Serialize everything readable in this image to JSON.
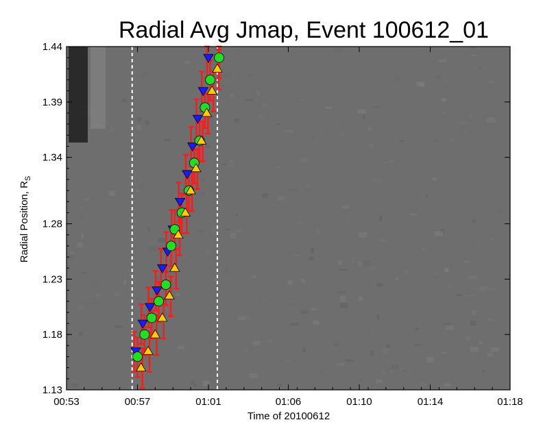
{
  "chart_data": {
    "type": "scatter",
    "title": "Radial Avg Jmap, Event 100612_01",
    "xlabel": "Time of 20100612",
    "ylabel": "Radial Position, R",
    "ylabel_sub": "S",
    "x_ticks": [
      "00:53",
      "00:57",
      "01:01",
      "01:06",
      "01:10",
      "01:14",
      "01:18"
    ],
    "x_tick_minutes": [
      0,
      4,
      8,
      12.5,
      16.5,
      20.5,
      25
    ],
    "y_ticks": [
      "1.13",
      "1.18",
      "1.23",
      "1.28",
      "1.34",
      "1.39",
      "1.44"
    ],
    "y_tick_values": [
      1.13,
      1.18,
      1.23,
      1.28,
      1.34,
      1.39,
      1.44
    ],
    "xlim_minutes": [
      0,
      25
    ],
    "ylim": [
      1.13,
      1.44
    ],
    "dashed_lines_minutes": [
      3.7,
      8.5
    ],
    "background": "grayscale radial intensity map",
    "colors": {
      "background_gray": "#6e6e6e",
      "errorbar": "#ff1a1a",
      "series_blue": "#1a1aff",
      "series_green": "#22dd22",
      "series_yellow": "#ffcc00",
      "dashed": "#ffffff"
    },
    "series": [
      {
        "marker": "triangle-down",
        "color": "#1a1aff",
        "x": [
          3.9,
          4.3,
          4.7,
          5.1,
          5.4,
          5.7,
          6.0,
          6.4,
          6.8,
          7.1,
          7.4,
          7.7,
          8.0
        ],
        "y": [
          1.165,
          1.19,
          1.205,
          1.22,
          1.24,
          1.255,
          1.275,
          1.3,
          1.325,
          1.35,
          1.375,
          1.4,
          1.43
        ]
      },
      {
        "marker": "circle",
        "color": "#22dd22",
        "x": [
          4.0,
          4.4,
          4.8,
          5.2,
          5.6,
          5.9,
          6.1,
          6.5,
          6.9,
          7.2,
          7.5,
          7.8,
          8.1,
          8.6
        ],
        "y": [
          1.16,
          1.18,
          1.195,
          1.21,
          1.225,
          1.26,
          1.275,
          1.29,
          1.31,
          1.335,
          1.355,
          1.385,
          1.41,
          1.43
        ]
      },
      {
        "marker": "triangle-up",
        "color": "#ffcc00",
        "x": [
          4.2,
          4.6,
          5.0,
          5.4,
          5.8,
          6.1,
          6.3,
          6.7,
          7.0,
          7.3,
          7.6,
          7.9,
          8.2,
          8.5
        ],
        "y": [
          1.15,
          1.165,
          1.18,
          1.195,
          1.215,
          1.24,
          1.27,
          1.29,
          1.31,
          1.33,
          1.355,
          1.38,
          1.4,
          1.42
        ]
      }
    ]
  }
}
